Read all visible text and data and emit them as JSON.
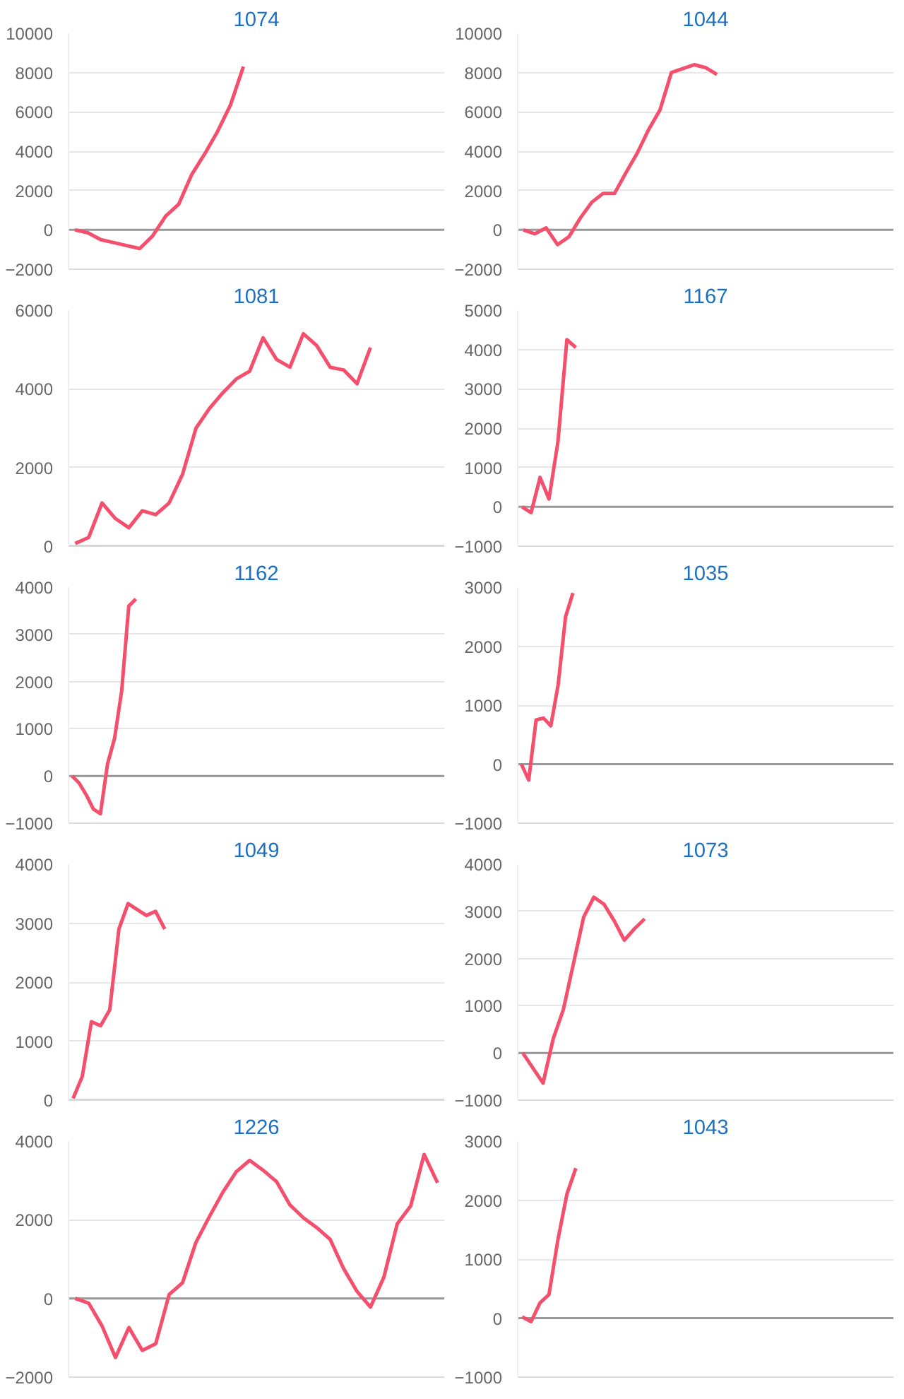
{
  "chart_data": [
    {
      "type": "line",
      "title": "1074",
      "categories": [
        null,
        null,
        null,
        null,
        null,
        null,
        null,
        null,
        null,
        null,
        null,
        null,
        null,
        null,
        null,
        null,
        null,
        null,
        null,
        null,
        null,
        null,
        null,
        null,
        null,
        null,
        null,
        null,
        null
      ],
      "series": [
        {
          "color": "#f4506e",
          "values": [
            0,
            -150,
            -500,
            -650,
            -800,
            -950,
            -300,
            700,
            1300,
            2800,
            3850,
            5000,
            6350,
            8300,
            null,
            null,
            null,
            null,
            null,
            null,
            null,
            null,
            null,
            null,
            null,
            null,
            null,
            null,
            null
          ]
        }
      ],
      "ylim": [
        -2000,
        10000
      ],
      "yticks": [
        -2000,
        0,
        2000,
        4000,
        6000,
        8000,
        10000
      ],
      "grid": "y",
      "tick_labels": "y",
      "ref_lines": [
        {
          "axis": "y",
          "value": 0,
          "color": "#999999"
        }
      ]
    },
    {
      "type": "line",
      "title": "1044",
      "categories": [
        null,
        null,
        null,
        null,
        null,
        null,
        null,
        null,
        null,
        null,
        null,
        null,
        null,
        null,
        null,
        null,
        null,
        null,
        null,
        null,
        null,
        null,
        null,
        null,
        null,
        null,
        null,
        null,
        null,
        null,
        null,
        null,
        null
      ],
      "series": [
        {
          "color": "#f4506e",
          "values": [
            0,
            -200,
            100,
            -750,
            -350,
            600,
            1400,
            1850,
            1850,
            2900,
            3900,
            5100,
            6100,
            8000,
            8200,
            8400,
            8250,
            7900,
            null,
            null,
            null,
            null,
            null,
            null,
            null,
            null,
            null,
            null,
            null,
            null,
            null,
            null,
            null
          ]
        }
      ],
      "ylim": [
        -2000,
        10000
      ],
      "yticks": [
        -2000,
        0,
        2000,
        4000,
        6000,
        8000,
        10000
      ],
      "grid": "y",
      "tick_labels": "y",
      "ref_lines": [
        {
          "axis": "y",
          "value": 0,
          "color": "#999999"
        }
      ]
    },
    {
      "type": "line",
      "title": "1081",
      "categories": [
        null,
        null,
        null,
        null,
        null,
        null,
        null,
        null,
        null,
        null,
        null,
        null,
        null,
        null,
        null,
        null,
        null,
        null,
        null,
        null,
        null,
        null,
        null,
        null,
        null,
        null,
        null,
        null
      ],
      "series": [
        {
          "color": "#f4506e",
          "values": [
            70,
            220,
            1100,
            700,
            470,
            900,
            800,
            1100,
            1830,
            3000,
            3500,
            3900,
            4250,
            4450,
            5300,
            4750,
            4550,
            5400,
            5100,
            4550,
            4480,
            4130,
            5050,
            null,
            null,
            null,
            null,
            null
          ]
        }
      ],
      "ylim": [
        0,
        6000
      ],
      "yticks": [
        0,
        2000,
        4000,
        6000
      ],
      "grid": "y",
      "tick_labels": "y",
      "ref_lines": [
        {
          "axis": "y",
          "value": 0,
          "color": "#999999"
        }
      ]
    },
    {
      "type": "line",
      "title": "1167",
      "categories": [
        null,
        null,
        null,
        null,
        null,
        null,
        null,
        null,
        null,
        null,
        null,
        null,
        null,
        null,
        null,
        null,
        null,
        null,
        null,
        null,
        null,
        null,
        null,
        null,
        null,
        null,
        null,
        null,
        null,
        null,
        null,
        null,
        null,
        null,
        null,
        null,
        null,
        null,
        null,
        null,
        null,
        null
      ],
      "series": [
        {
          "color": "#f4506e",
          "values": [
            0,
            -150,
            750,
            200,
            1650,
            4250,
            4050,
            null,
            null,
            null,
            null,
            null,
            null,
            null,
            null,
            null,
            null,
            null,
            null,
            null,
            null,
            null,
            null,
            null,
            null,
            null,
            null,
            null,
            null,
            null,
            null,
            null,
            null,
            null,
            null,
            null,
            null,
            null,
            null,
            null,
            null,
            null
          ]
        }
      ],
      "ylim": [
        -1000,
        5000
      ],
      "yticks": [
        -1000,
        0,
        1000,
        2000,
        3000,
        4000,
        5000
      ],
      "grid": "y",
      "tick_labels": "y",
      "ref_lines": [
        {
          "axis": "y",
          "value": 0,
          "color": "#999999"
        }
      ]
    },
    {
      "type": "line",
      "title": "1162",
      "categories": [
        null,
        null,
        null,
        null,
        null,
        null,
        null,
        null,
        null,
        null,
        null,
        null,
        null,
        null,
        null,
        null,
        null,
        null,
        null,
        null,
        null,
        null,
        null,
        null,
        null,
        null,
        null,
        null,
        null,
        null,
        null,
        null,
        null,
        null,
        null,
        null,
        null,
        null,
        null,
        null,
        null,
        null,
        null,
        null,
        null,
        null,
        null,
        null,
        null,
        null,
        null,
        null,
        null
      ],
      "series": [
        {
          "color": "#f4506e",
          "values": [
            0,
            -150,
            -400,
            -700,
            -800,
            250,
            800,
            1800,
            3600,
            3750,
            null,
            null,
            null,
            null,
            null,
            null,
            null,
            null,
            null,
            null,
            null,
            null,
            null,
            null,
            null,
            null,
            null,
            null,
            null,
            null,
            null,
            null,
            null,
            null,
            null,
            null,
            null,
            null,
            null,
            null,
            null,
            null,
            null,
            null,
            null,
            null,
            null,
            null,
            null,
            null,
            null,
            null,
            null
          ]
        }
      ],
      "ylim": [
        -1000,
        4000
      ],
      "yticks": [
        -1000,
        0,
        1000,
        2000,
        3000,
        4000
      ],
      "grid": "y",
      "tick_labels": "y",
      "ref_lines": [
        {
          "axis": "y",
          "value": 0,
          "color": "#999999"
        }
      ]
    },
    {
      "type": "line",
      "title": "1035",
      "categories": [
        null,
        null,
        null,
        null,
        null,
        null,
        null,
        null,
        null,
        null,
        null,
        null,
        null,
        null,
        null,
        null,
        null,
        null,
        null,
        null,
        null,
        null,
        null,
        null,
        null,
        null,
        null,
        null,
        null,
        null,
        null,
        null,
        null,
        null,
        null,
        null,
        null,
        null,
        null,
        null,
        null,
        null,
        null,
        null,
        null,
        null,
        null,
        null,
        null,
        null,
        null
      ],
      "series": [
        {
          "color": "#f4506e",
          "values": [
            0,
            -270,
            750,
            780,
            650,
            1350,
            2500,
            2900,
            null,
            null,
            null,
            null,
            null,
            null,
            null,
            null,
            null,
            null,
            null,
            null,
            null,
            null,
            null,
            null,
            null,
            null,
            null,
            null,
            null,
            null,
            null,
            null,
            null,
            null,
            null,
            null,
            null,
            null,
            null,
            null,
            null,
            null,
            null,
            null,
            null,
            null,
            null,
            null,
            null,
            null,
            null
          ]
        }
      ],
      "ylim": [
        -1000,
        3000
      ],
      "yticks": [
        -1000,
        0,
        1000,
        2000,
        3000
      ],
      "grid": "y",
      "tick_labels": "y",
      "ref_lines": [
        {
          "axis": "y",
          "value": 0,
          "color": "#999999"
        }
      ]
    },
    {
      "type": "line",
      "title": "1049",
      "categories": [
        null,
        null,
        null,
        null,
        null,
        null,
        null,
        null,
        null,
        null,
        null,
        null,
        null,
        null,
        null,
        null,
        null,
        null,
        null,
        null,
        null,
        null,
        null,
        null,
        null,
        null,
        null,
        null,
        null,
        null,
        null,
        null,
        null,
        null,
        null,
        null,
        null,
        null,
        null,
        null,
        null
      ],
      "series": [
        {
          "color": "#f4506e",
          "values": [
            30,
            400,
            1330,
            1260,
            1530,
            2900,
            3330,
            3230,
            3130,
            3200,
            2900,
            null,
            null,
            null,
            null,
            null,
            null,
            null,
            null,
            null,
            null,
            null,
            null,
            null,
            null,
            null,
            null,
            null,
            null,
            null,
            null,
            null,
            null,
            null,
            null,
            null,
            null,
            null,
            null,
            null,
            null
          ]
        }
      ],
      "ylim": [
        0,
        4000
      ],
      "yticks": [
        0,
        1000,
        2000,
        3000,
        4000
      ],
      "grid": "y",
      "tick_labels": "y",
      "ref_lines": [
        {
          "axis": "y",
          "value": 0,
          "color": "#999999"
        }
      ]
    },
    {
      "type": "line",
      "title": "1073",
      "categories": [
        null,
        null,
        null,
        null,
        null,
        null,
        null,
        null,
        null,
        null,
        null,
        null,
        null,
        null,
        null,
        null,
        null,
        null,
        null,
        null,
        null,
        null,
        null,
        null,
        null,
        null,
        null,
        null,
        null,
        null,
        null,
        null,
        null,
        null,
        null,
        null,
        null
      ],
      "series": [
        {
          "color": "#f4506e",
          "values": [
            0,
            -320,
            -640,
            300,
            920,
            1900,
            2880,
            3300,
            3150,
            2800,
            2390,
            2630,
            2840,
            null,
            null,
            null,
            null,
            null,
            null,
            null,
            null,
            null,
            null,
            null,
            null,
            null,
            null,
            null,
            null,
            null,
            null,
            null,
            null,
            null,
            null,
            null,
            null
          ]
        }
      ],
      "ylim": [
        -1000,
        4000
      ],
      "yticks": [
        -1000,
        0,
        1000,
        2000,
        3000,
        4000
      ],
      "grid": "y",
      "tick_labels": "y",
      "ref_lines": [
        {
          "axis": "y",
          "value": 0,
          "color": "#999999"
        }
      ]
    },
    {
      "type": "line",
      "title": "1226",
      "categories": [
        null,
        null,
        null,
        null,
        null,
        null,
        null,
        null,
        null,
        null,
        null,
        null,
        null,
        null,
        null,
        null,
        null,
        null,
        null,
        null,
        null,
        null,
        null,
        null,
        null,
        null,
        null,
        null
      ],
      "series": [
        {
          "color": "#f4506e",
          "values": [
            0,
            -120,
            -700,
            -1500,
            -740,
            -1320,
            -1150,
            100,
            400,
            1430,
            2080,
            2700,
            3220,
            3510,
            3260,
            2970,
            2380,
            2050,
            1800,
            1500,
            760,
            180,
            -220,
            540,
            1900,
            2350,
            3660,
            2940
          ]
        }
      ],
      "ylim": [
        -2000,
        4000
      ],
      "yticks": [
        -2000,
        0,
        2000,
        4000
      ],
      "grid": "y",
      "tick_labels": "y",
      "ref_lines": [
        {
          "axis": "y",
          "value": 0,
          "color": "#999999"
        }
      ]
    },
    {
      "type": "line",
      "title": "1043",
      "categories": [
        null,
        null,
        null,
        null,
        null,
        null,
        null,
        null,
        null,
        null,
        null,
        null,
        null,
        null,
        null,
        null,
        null,
        null,
        null,
        null,
        null,
        null,
        null,
        null,
        null,
        null,
        null,
        null,
        null,
        null,
        null,
        null,
        null,
        null,
        null,
        null,
        null,
        null,
        null,
        null,
        null,
        null
      ],
      "series": [
        {
          "color": "#f4506e",
          "values": [
            20,
            -60,
            260,
            400,
            1330,
            2100,
            2540,
            null,
            null,
            null,
            null,
            null,
            null,
            null,
            null,
            null,
            null,
            null,
            null,
            null,
            null,
            null,
            null,
            null,
            null,
            null,
            null,
            null,
            null,
            null,
            null,
            null,
            null,
            null,
            null,
            null,
            null,
            null,
            null,
            null,
            null,
            null
          ]
        }
      ],
      "ylim": [
        -1000,
        3000
      ],
      "yticks": [
        -1000,
        0,
        1000,
        2000,
        3000
      ],
      "grid": "y",
      "tick_labels": "y",
      "ref_lines": [
        {
          "axis": "y",
          "value": 0,
          "color": "#999999"
        }
      ]
    }
  ]
}
